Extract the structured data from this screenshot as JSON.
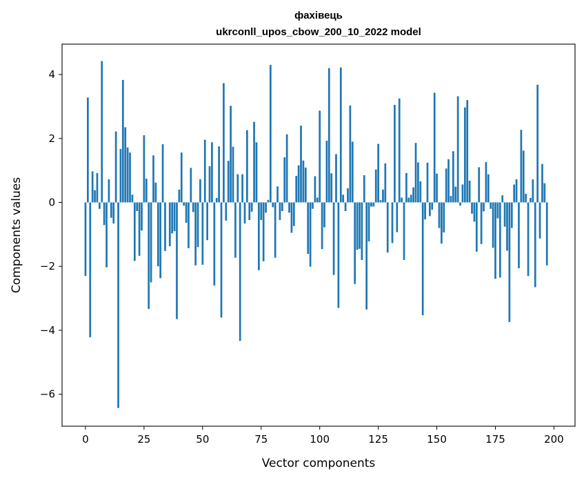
{
  "chart_data": {
    "type": "bar",
    "title": "фахівець",
    "subtitle": "ukrconll_upos_cbow_200_10_2022 model",
    "xlabel": "Vector components",
    "ylabel": "Components values",
    "xlim": [
      -10,
      209
    ],
    "ylim": [
      -7.0,
      4.95
    ],
    "xticks": [
      0,
      25,
      50,
      75,
      100,
      125,
      150,
      175,
      200
    ],
    "xtick_labels": [
      "0",
      "25",
      "50",
      "75",
      "100",
      "125",
      "150",
      "175",
      "200"
    ],
    "yticks": [
      -6,
      -4,
      -2,
      0,
      2,
      4
    ],
    "ytick_labels": [
      "−6",
      "−4",
      "−2",
      "0",
      "2",
      "4"
    ],
    "grid": false,
    "bar_color": "#1f77b4",
    "values": [
      -2.3,
      3.28,
      -4.22,
      0.97,
      0.38,
      0.92,
      -0.2,
      4.42,
      -0.71,
      -2.03,
      0.72,
      -0.48,
      -0.66,
      2.22,
      -6.43,
      1.67,
      3.83,
      2.35,
      1.72,
      1.56,
      0.24,
      -1.83,
      -0.27,
      -1.67,
      -0.88,
      2.1,
      0.74,
      -3.33,
      -2.5,
      1.47,
      0.62,
      -2.0,
      -2.37,
      1.82,
      -1.52,
      0.0,
      -1.37,
      -0.97,
      -0.9,
      -3.65,
      0.4,
      1.56,
      -0.1,
      -0.64,
      -1.43,
      1.08,
      -0.3,
      -1.97,
      -1.4,
      0.72,
      -1.95,
      1.96,
      -1.18,
      1.13,
      1.88,
      -2.6,
      0.14,
      1.75,
      -3.6,
      3.73,
      -0.57,
      1.3,
      3.02,
      1.74,
      -1.73,
      0.88,
      -4.33,
      0.88,
      -0.66,
      2.26,
      -0.55,
      -0.29,
      2.52,
      1.88,
      -2.12,
      -0.55,
      -1.84,
      -0.32,
      0.08,
      4.3,
      -0.15,
      -1.73,
      0.5,
      -0.55,
      -0.27,
      1.41,
      2.13,
      -0.32,
      -0.95,
      -0.74,
      0.83,
      1.16,
      2.4,
      1.31,
      1.09,
      -1.61,
      -2.01,
      -0.2,
      0.82,
      0.15,
      2.87,
      -1.46,
      -0.78,
      1.93,
      4.2,
      0.91,
      -2.27,
      1.51,
      -3.3,
      4.22,
      0.24,
      -0.27,
      0.44,
      3.03,
      1.9,
      -2.55,
      -1.48,
      -1.45,
      -1.8,
      0.85,
      -3.35,
      -1.22,
      -0.13,
      -0.13,
      1.03,
      1.83,
      0.07,
      0.4,
      1.22,
      -1.57,
      0.0,
      -1.27,
      3.05,
      -0.93,
      3.25,
      0.15,
      -1.8,
      0.92,
      0.15,
      0.24,
      0.47,
      1.86,
      1.25,
      0.66,
      -3.53,
      -0.53,
      1.24,
      -0.43,
      -0.23,
      3.43,
      0.9,
      -0.8,
      -1.29,
      -0.94,
      1.06,
      1.35,
      0.2,
      1.6,
      0.49,
      3.32,
      -0.1,
      0.56,
      2.97,
      3.2,
      0.68,
      -0.35,
      -0.6,
      -1.54,
      1.1,
      -1.3,
      -0.28,
      1.26,
      0.88,
      -0.2,
      -1.42,
      -2.39,
      -0.5,
      -2.35,
      0.22,
      -0.76,
      -1.51,
      -3.74,
      -0.8,
      0.56,
      0.72,
      -2.06,
      2.27,
      1.62,
      0.27,
      -2.3,
      0.14,
      0.72,
      -2.65,
      3.68,
      -1.13,
      1.2,
      0.6,
      -1.97
    ]
  }
}
